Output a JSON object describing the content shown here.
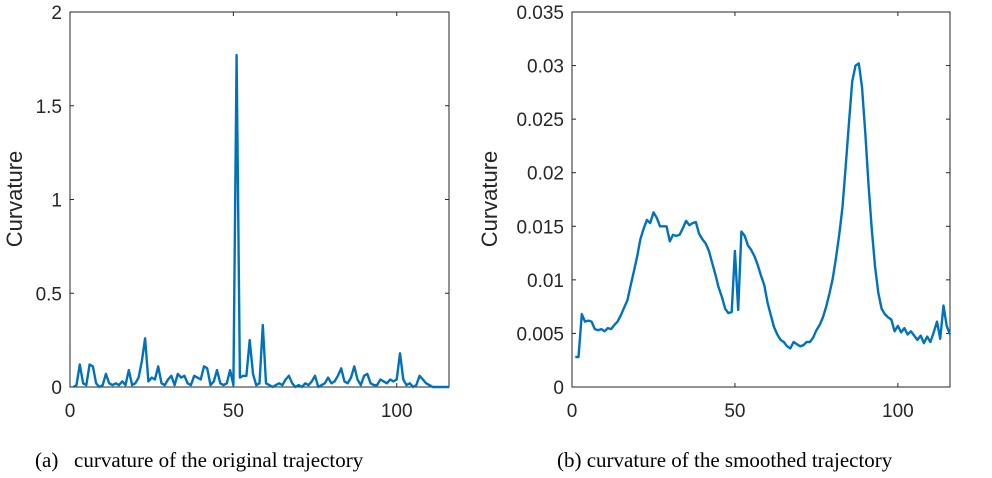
{
  "colors": {
    "line": "#0072BD",
    "axis": "#262626",
    "tick": "#262626",
    "background": "#ffffff"
  },
  "chart_data": [
    {
      "type": "line",
      "caption": "(a)   curvature of the original trajectory",
      "xlabel": "",
      "ylabel": "Curvature",
      "xlim": [
        0,
        116
      ],
      "ylim": [
        0,
        2
      ],
      "xticks": [
        0,
        50,
        100
      ],
      "yticks": [
        0,
        0.5,
        1,
        1.5,
        2
      ],
      "ytick_labels": [
        "0",
        "0.5",
        "1",
        "1.5",
        "2"
      ],
      "series": [
        {
          "name": "curvature",
          "x": [
            1,
            2,
            3,
            4,
            5,
            6,
            7,
            8,
            9,
            10,
            11,
            12,
            13,
            14,
            15,
            16,
            17,
            18,
            19,
            20,
            21,
            22,
            23,
            24,
            25,
            26,
            27,
            28,
            29,
            30,
            31,
            32,
            33,
            34,
            35,
            36,
            37,
            38,
            39,
            40,
            41,
            42,
            43,
            44,
            45,
            46,
            47,
            48,
            49,
            50,
            51,
            52,
            53,
            54,
            55,
            56,
            57,
            58,
            59,
            60,
            61,
            62,
            63,
            64,
            65,
            66,
            67,
            68,
            69,
            70,
            71,
            72,
            73,
            74,
            75,
            76,
            77,
            78,
            79,
            80,
            81,
            82,
            83,
            84,
            85,
            86,
            87,
            88,
            89,
            90,
            91,
            92,
            93,
            94,
            95,
            96,
            97,
            98,
            99,
            100,
            101,
            102,
            103,
            104,
            105,
            106,
            107,
            108,
            109,
            110,
            111,
            112,
            113,
            114,
            115,
            116
          ],
          "y": [
            0,
            0.01,
            0.12,
            0.02,
            0.01,
            0.12,
            0.11,
            0.02,
            0,
            0.01,
            0.07,
            0.02,
            0.01,
            0.02,
            0.01,
            0.03,
            0.01,
            0.09,
            0.01,
            0.02,
            0.05,
            0.14,
            0.26,
            0.03,
            0.05,
            0.04,
            0.11,
            0.02,
            0.01,
            0.04,
            0.06,
            0.01,
            0.07,
            0.05,
            0.06,
            0.02,
            0.01,
            0.06,
            0.05,
            0.04,
            0.11,
            0.1,
            0.01,
            0.03,
            0.09,
            0.02,
            0.01,
            0.02,
            0.09,
            0.01,
            1.77,
            0.05,
            0.06,
            0.06,
            0.25,
            0.07,
            0.01,
            0.02,
            0.33,
            0.02,
            0.01,
            0,
            0.01,
            0.02,
            0.01,
            0.04,
            0.06,
            0.02,
            0,
            0.01,
            0,
            0.02,
            0.01,
            0.03,
            0.06,
            0,
            0.01,
            0.02,
            0.05,
            0.02,
            0.03,
            0.06,
            0.1,
            0.03,
            0.02,
            0.05,
            0.11,
            0.04,
            0.01,
            0.06,
            0.07,
            0.02,
            0.01,
            0.01,
            0.04,
            0.03,
            0.02,
            0.04,
            0.03,
            0.04,
            0.18,
            0.04,
            0.01,
            0.02,
            0,
            0.01,
            0.06,
            0.04,
            0.02,
            0.01,
            0,
            0,
            0,
            0,
            0,
            0
          ]
        }
      ]
    },
    {
      "type": "line",
      "caption": "(b) curvature of the smoothed trajectory",
      "xlabel": "",
      "ylabel": "Curvature",
      "xlim": [
        0,
        116
      ],
      "ylim": [
        0,
        0.035
      ],
      "xticks": [
        0,
        50,
        100
      ],
      "yticks": [
        0,
        0.005,
        0.01,
        0.015,
        0.02,
        0.025,
        0.03,
        0.035
      ],
      "ytick_labels": [
        "0",
        "0.005",
        "0.01",
        "0.015",
        "0.02",
        "0.025",
        "0.03",
        "0.035"
      ],
      "series": [
        {
          "name": "curvature",
          "x": [
            1,
            2,
            3,
            4,
            5,
            6,
            7,
            8,
            9,
            10,
            11,
            12,
            13,
            14,
            15,
            16,
            17,
            18,
            19,
            20,
            21,
            22,
            23,
            24,
            25,
            26,
            27,
            28,
            29,
            30,
            31,
            32,
            33,
            34,
            35,
            36,
            37,
            38,
            39,
            40,
            41,
            42,
            43,
            44,
            45,
            46,
            47,
            48,
            49,
            50,
            51,
            52,
            53,
            54,
            55,
            56,
            57,
            58,
            59,
            60,
            61,
            62,
            63,
            64,
            65,
            66,
            67,
            68,
            69,
            70,
            71,
            72,
            73,
            74,
            75,
            76,
            77,
            78,
            79,
            80,
            81,
            82,
            83,
            84,
            85,
            86,
            87,
            88,
            89,
            90,
            91,
            92,
            93,
            94,
            95,
            96,
            97,
            98,
            99,
            100,
            101,
            102,
            103,
            104,
            105,
            106,
            107,
            108,
            109,
            110,
            111,
            112,
            113,
            114,
            115,
            116
          ],
          "y": [
            0.0028,
            0.0028,
            0.0068,
            0.0061,
            0.0062,
            0.0061,
            0.0054,
            0.0053,
            0.0054,
            0.0052,
            0.0055,
            0.0054,
            0.0058,
            0.0061,
            0.0067,
            0.0074,
            0.0081,
            0.0095,
            0.0108,
            0.0122,
            0.0138,
            0.0148,
            0.0156,
            0.0153,
            0.0163,
            0.0158,
            0.015,
            0.015,
            0.015,
            0.0136,
            0.0142,
            0.0141,
            0.0142,
            0.0148,
            0.0155,
            0.0151,
            0.0153,
            0.0154,
            0.0143,
            0.0138,
            0.0134,
            0.0127,
            0.0116,
            0.0105,
            0.0093,
            0.0084,
            0.0073,
            0.0069,
            0.007,
            0.0127,
            0.0072,
            0.0145,
            0.0141,
            0.0132,
            0.0128,
            0.0122,
            0.0114,
            0.0104,
            0.0095,
            0.0079,
            0.0067,
            0.0056,
            0.0049,
            0.0044,
            0.0042,
            0.0038,
            0.0036,
            0.0042,
            0.004,
            0.0038,
            0.0039,
            0.0042,
            0.0042,
            0.0046,
            0.0053,
            0.0058,
            0.0065,
            0.0075,
            0.0087,
            0.0101,
            0.012,
            0.0142,
            0.0168,
            0.0206,
            0.0247,
            0.0285,
            0.03,
            0.0302,
            0.028,
            0.0237,
            0.0189,
            0.0147,
            0.0112,
            0.0088,
            0.0073,
            0.0068,
            0.0065,
            0.0063,
            0.0052,
            0.0057,
            0.0051,
            0.0055,
            0.0049,
            0.0052,
            0.0048,
            0.0044,
            0.0048,
            0.0041,
            0.0047,
            0.0042,
            0.0051,
            0.0061,
            0.0045,
            0.0076,
            0.0057,
            0.0049
          ]
        }
      ]
    }
  ]
}
